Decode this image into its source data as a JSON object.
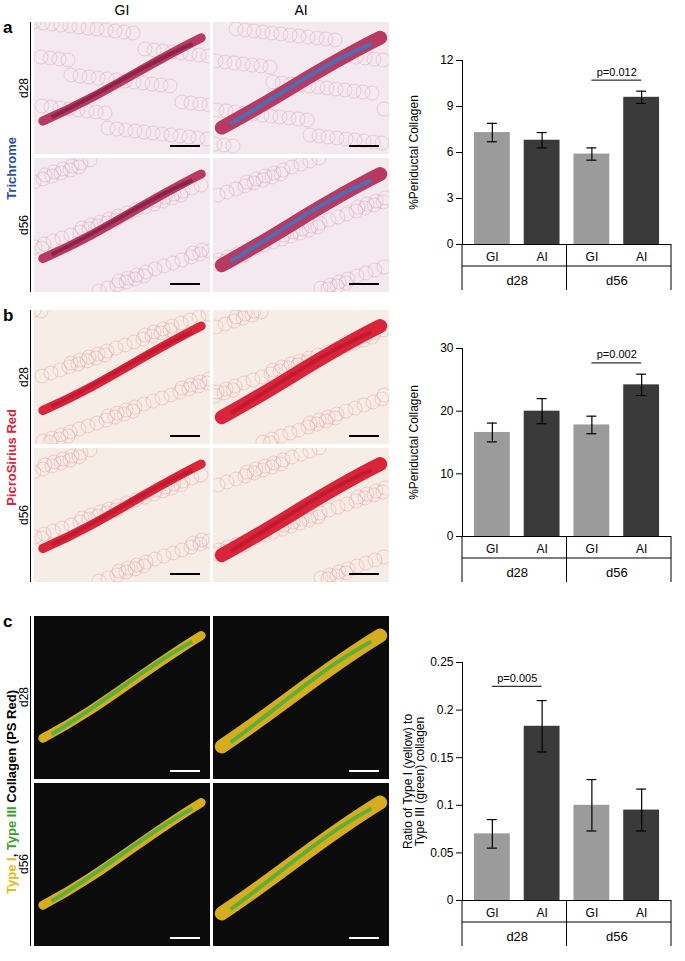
{
  "columns": [
    "GI",
    "AI"
  ],
  "panels": [
    {
      "letter": "a",
      "stain": [
        {
          "text": "Trichrome",
          "color": "#2c4fa3"
        }
      ],
      "rows": [
        "d28",
        "d56"
      ]
    },
    {
      "letter": "b",
      "stain": [
        {
          "text": "PicroSirius Red",
          "color": "#d9243a"
        }
      ],
      "rows": [
        "d28",
        "d56"
      ]
    },
    {
      "letter": "c",
      "stain": [
        {
          "text": "Type I",
          "color": "#e0bd1a"
        },
        {
          "text": ", ",
          "color": "#000000"
        },
        {
          "text": "Type III",
          "color": "#3f9e2e"
        },
        {
          "text": " Collagen (PS Red)",
          "color": "#000000"
        }
      ],
      "rows": [
        "d28",
        "d56"
      ]
    }
  ],
  "chart_data": [
    {
      "type": "bar",
      "ylabel": "%Periductal Collagen",
      "categories": [
        "GI",
        "AI",
        "GI",
        "AI"
      ],
      "groups": [
        "d28",
        "d28",
        "d56",
        "d56"
      ],
      "values": [
        7.3,
        6.8,
        5.9,
        9.6
      ],
      "errors": [
        0.6,
        0.5,
        0.4,
        0.4
      ],
      "colors": [
        "#9b9b9b",
        "#3a3a3a",
        "#9b9b9b",
        "#3a3a3a"
      ],
      "ylim": [
        0,
        12
      ],
      "yticks": [
        0,
        3,
        6,
        9,
        12
      ],
      "annotations": [
        {
          "text": "p=0.012",
          "from": 2,
          "to": 3
        }
      ]
    },
    {
      "type": "bar",
      "ylabel": "%Periductal Collagen",
      "categories": [
        "GI",
        "AI",
        "GI",
        "AI"
      ],
      "groups": [
        "d28",
        "d28",
        "d56",
        "d56"
      ],
      "values": [
        16.6,
        20.0,
        17.8,
        24.2
      ],
      "errors": [
        1.5,
        2.0,
        1.4,
        1.7
      ],
      "colors": [
        "#9b9b9b",
        "#3a3a3a",
        "#9b9b9b",
        "#3a3a3a"
      ],
      "ylim": [
        0,
        30
      ],
      "yticks": [
        0,
        10,
        20,
        30
      ],
      "annotations": [
        {
          "text": "p=0.002",
          "from": 2,
          "to": 3
        }
      ]
    },
    {
      "type": "bar",
      "ylabel": "Ratio of Type I (yellow) to Type III (green) collagen",
      "categories": [
        "GI",
        "AI",
        "GI",
        "AI"
      ],
      "groups": [
        "d28",
        "d28",
        "d56",
        "d56"
      ],
      "values": [
        0.07,
        0.183,
        0.1,
        0.095
      ],
      "errors": [
        0.015,
        0.027,
        0.027,
        0.022
      ],
      "colors": [
        "#9b9b9b",
        "#3a3a3a",
        "#9b9b9b",
        "#3a3a3a"
      ],
      "ylim": [
        0,
        0.25
      ],
      "yticks": [
        0,
        0.05,
        0.1,
        0.15,
        0.2,
        0.25
      ],
      "annotations": [
        {
          "text": "p=0.005",
          "from": 0,
          "to": 1
        }
      ]
    }
  ]
}
